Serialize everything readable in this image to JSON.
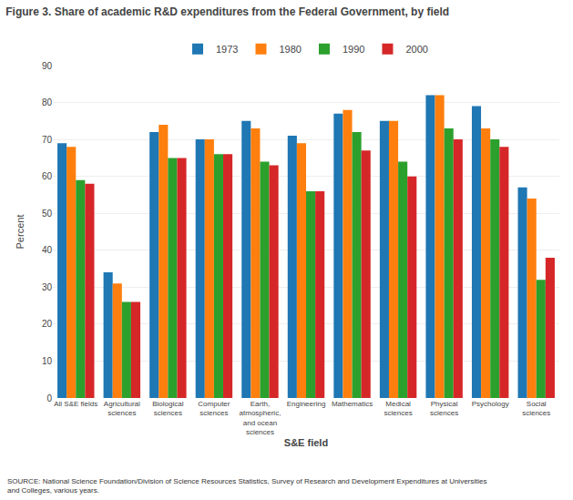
{
  "chart_data": {
    "type": "bar",
    "title": "Figure 3. Share of academic R&D expenditures from the Federal Government, by field",
    "xlabel": "S&E field",
    "ylabel": "Percent",
    "categories": [
      "All S&E fields",
      "Agricultural\nsciences",
      "Biological\nsciences",
      "Computer\nsciences",
      "Earth,\natmospheric,\nand ocean\nsciences",
      "Engineering",
      "Mathematics",
      "Medical\nsciences",
      "Physical\nsciences",
      "Psychology",
      "Social\nsciences"
    ],
    "series": [
      {
        "name": "1973",
        "values": [
          69,
          34,
          72,
          70,
          75,
          71,
          77,
          75,
          82,
          79,
          57
        ]
      },
      {
        "name": "1980",
        "values": [
          68,
          31,
          74,
          70,
          73,
          69,
          78,
          75,
          82,
          73,
          54
        ]
      },
      {
        "name": "1990",
        "values": [
          59,
          26,
          65,
          66,
          64,
          56,
          72,
          64,
          73,
          70,
          32
        ]
      },
      {
        "name": "2000",
        "values": [
          58,
          26,
          65,
          66,
          63,
          56,
          67,
          60,
          70,
          68,
          38
        ]
      }
    ],
    "ylim": [
      0,
      90
    ],
    "yticks": [
      0,
      10,
      20,
      30,
      40,
      50,
      60,
      70,
      80,
      90
    ],
    "grid": true,
    "legend": "top",
    "annotations": [
      "SOURCE: National Science Foundation/Division of Science Resources Statistics, Survey of Research and Development Expenditures at Universities\nand Colleges, various years."
    ]
  }
}
